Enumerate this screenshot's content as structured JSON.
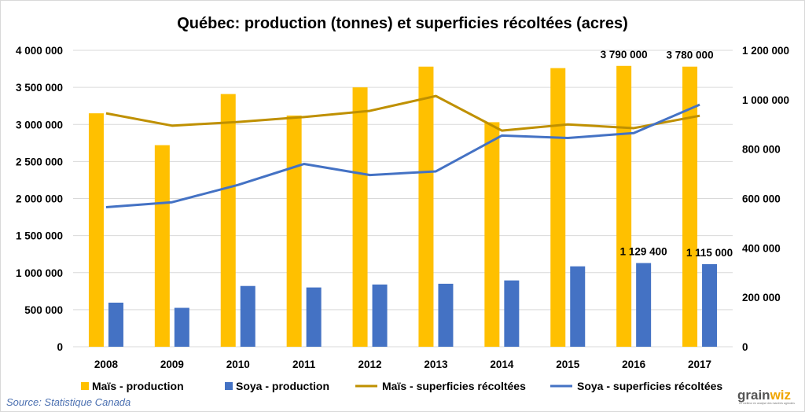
{
  "chart_data": {
    "type": "bar",
    "title": "Québec: production (tonnes) et superficies récoltées (acres)",
    "categories": [
      "2008",
      "2009",
      "2010",
      "2011",
      "2012",
      "2013",
      "2014",
      "2015",
      "2016",
      "2017"
    ],
    "y_left": {
      "min": 0,
      "max": 4000000,
      "ticks": [
        {
          "value": 0,
          "label": "0"
        },
        {
          "value": 500000,
          "label": "500 000"
        },
        {
          "value": 1000000,
          "label": "1 000 000"
        },
        {
          "value": 1500000,
          "label": "1 500 000"
        },
        {
          "value": 2000000,
          "label": "2 000 000"
        },
        {
          "value": 2500000,
          "label": "2 500 000"
        },
        {
          "value": 3000000,
          "label": "3 000 000"
        },
        {
          "value": 3500000,
          "label": "3 500 000"
        },
        {
          "value": 4000000,
          "label": "4 000 000"
        }
      ]
    },
    "y_right": {
      "min": 0,
      "max": 1200000,
      "ticks": [
        {
          "value": 0,
          "label": "0"
        },
        {
          "value": 200000,
          "label": "200 000"
        },
        {
          "value": 400000,
          "label": "400 000"
        },
        {
          "value": 600000,
          "label": "600 000"
        },
        {
          "value": 800000,
          "label": "800 000"
        },
        {
          "value": 1000000,
          "label": "1 000 000"
        },
        {
          "value": 1200000,
          "label": "1 200 000"
        }
      ]
    },
    "grid": true,
    "legend_position": "bottom",
    "series": [
      {
        "name": "Maïs - production",
        "kind": "bar",
        "axis": "left",
        "color": "#FFC000",
        "values": [
          3150000,
          2720000,
          3410000,
          3120000,
          3500000,
          3780000,
          3030000,
          3760000,
          3790000,
          3780000
        ],
        "data_labels": {
          "8": "3 790 000",
          "9": "3 780 000"
        }
      },
      {
        "name": "Soya - production",
        "kind": "bar",
        "axis": "left",
        "color": "#4472C4",
        "values": [
          595000,
          525000,
          820000,
          800000,
          840000,
          850000,
          895000,
          1085000,
          1129400,
          1115000
        ],
        "data_labels": {
          "8": "1 129 400",
          "9": "1 115 000"
        }
      },
      {
        "name": "Maïs - superficies récoltées",
        "kind": "line",
        "axis": "right",
        "color": "#BF9000",
        "values": [
          945000,
          895000,
          910000,
          930000,
          955000,
          1015000,
          875000,
          900000,
          885000,
          935000
        ]
      },
      {
        "name": "Soya - superficies récoltées",
        "kind": "line",
        "axis": "right",
        "color": "#4472C4",
        "values": [
          565000,
          585000,
          655000,
          740000,
          695000,
          710000,
          855000,
          845000,
          865000,
          980000
        ]
      }
    ]
  },
  "source": "Source: Statistique Canada",
  "logo": {
    "text_main": "grain",
    "text_accent": "wiz",
    "tagline": "Le meilleur en analyse des marchés agricoles"
  },
  "colors": {
    "gridline": "#d9d9d9",
    "logo_accent": "#F0A500"
  }
}
